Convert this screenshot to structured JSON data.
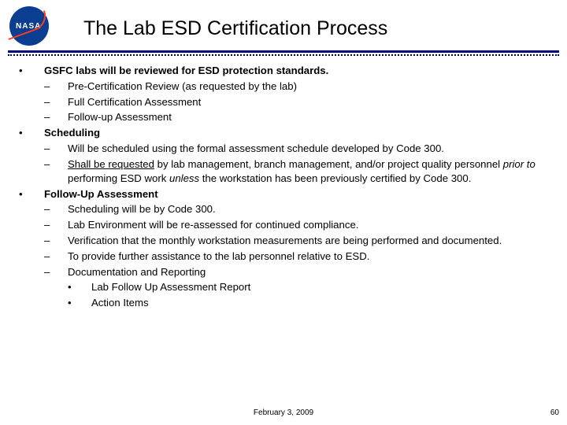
{
  "title": "The Lab ESD Certification Process",
  "logo_text": "NASA",
  "colors": {
    "rule": "#000080",
    "logo_bg": "#0b3d91",
    "logo_swoosh": "#fc3d21",
    "text": "#000000",
    "bg": "#ffffff"
  },
  "content": {
    "s1_head": "GSFC labs will be reviewed for ESD protection standards.",
    "s1_a": "Pre-Certification Review (as requested by the lab)",
    "s1_b": "Full Certification Assessment",
    "s1_c": "Follow-up Assessment",
    "s2_head": "Scheduling",
    "s2_a": "Will be scheduled using the formal assessment schedule developed by Code 300.",
    "s2_b_pre": "Shall be requested",
    "s2_b_mid": " by lab management, branch management, and/or project quality personnel ",
    "s2_b_ital": "prior to",
    "s2_b_post": " performing ESD work ",
    "s2_b_unless": "unless",
    "s2_b_end": " the workstation has been previously certified by Code 300.",
    "s3_head": "Follow-Up Assessment",
    "s3_a": "Scheduling will be by Code 300.",
    "s3_b": "Lab Environment will be re-assessed for continued compliance.",
    "s3_c": "Verification that the monthly workstation measurements are being performed and documented.",
    "s3_d": "To provide further assistance to the lab personnel relative to ESD.",
    "s3_e": "Documentation and Reporting",
    "s3_e1": "Lab Follow Up Assessment Report",
    "s3_e2": "Action Items"
  },
  "footer": {
    "date": "February 3, 2009",
    "page": "60"
  },
  "marks": {
    "bullet": "•",
    "dash": "–"
  }
}
